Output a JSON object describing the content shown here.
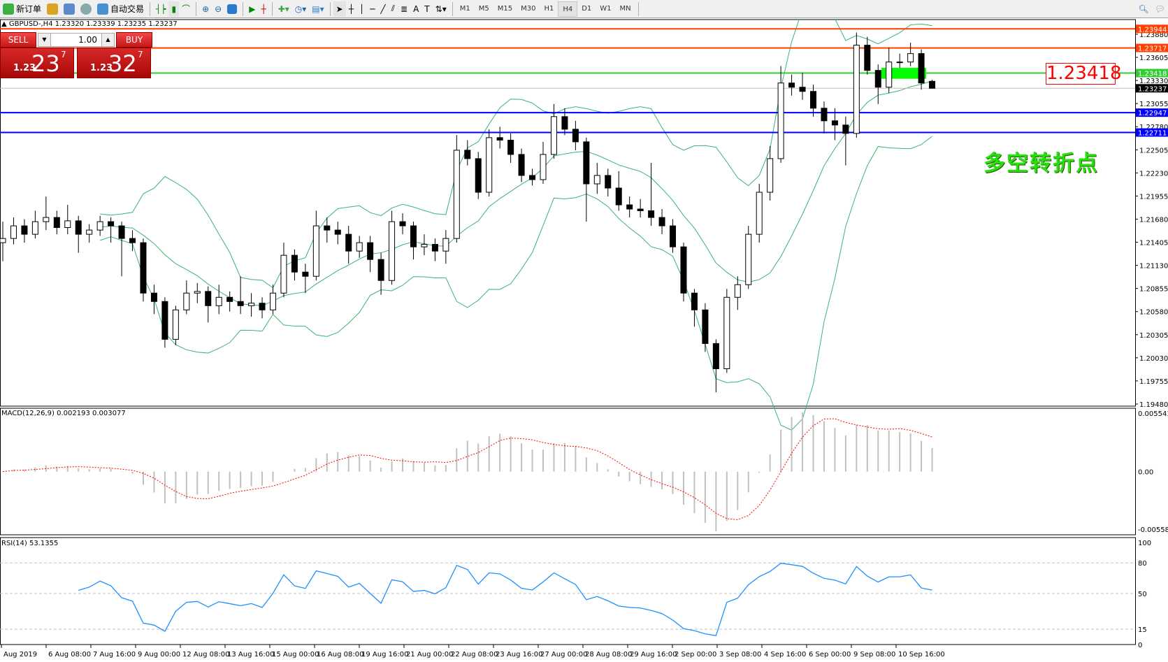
{
  "toolbar": {
    "new_order": "新订单",
    "auto_trading": "自动交易",
    "timeframes": [
      "M1",
      "M5",
      "M15",
      "M30",
      "H1",
      "H4",
      "D1",
      "W1",
      "MN"
    ],
    "active_timeframe": "H4"
  },
  "chart_header": "GBPUSD-,H4  1.23320 1.23339 1.23235 1.23237",
  "trade_panel": {
    "sell_label": "SELL",
    "buy_label": "BUY",
    "lot": "1.00",
    "sell_prefix": "1.23",
    "sell_big": "23",
    "sell_pip": "7",
    "buy_prefix": "1.23",
    "buy_big": "32",
    "buy_pip": "7"
  },
  "annotation_text": "多空转折点",
  "price_box": "1.23418",
  "macd_label": "MACD(12,26,9) 0.002193 0.003077",
  "rsi_label": "RSI(14) 53.1355",
  "colors": {
    "up_line": "#ff4000",
    "support": "#0000ff",
    "pivot": "#33cc33",
    "bands": "#3cb371",
    "rsi": "#1e90ff",
    "signal": "#ff0000",
    "histogram": "#c0c0c0"
  },
  "chart_data": {
    "type": "candlestick",
    "symbol": "GBPUSD-",
    "timeframe": "H4",
    "ylim": [
      1.1948,
      1.2399
    ],
    "price_ticks": [
      "1.23880",
      "1.23605",
      "1.23330",
      "1.23055",
      "1.22780",
      "1.22505",
      "1.22230",
      "1.21955",
      "1.21680",
      "1.21405",
      "1.21130",
      "1.20855",
      "1.20580",
      "1.20305",
      "1.20030",
      "1.19755",
      "1.19480"
    ],
    "date_ticks": [
      "Aug 2019",
      "6 Aug 08:00",
      "7 Aug 16:00",
      "9 Aug 00:00",
      "12 Aug 08:00",
      "13 Aug 16:00",
      "15 Aug 00:00",
      "16 Aug 08:00",
      "19 Aug 16:00",
      "21 Aug 00:00",
      "22 Aug 08:00",
      "23 Aug 16:00",
      "27 Aug 00:00",
      "28 Aug 08:00",
      "29 Aug 16:00",
      "2 Sep 00:00",
      "3 Sep 08:00",
      "4 Sep 16:00",
      "6 Sep 00:00",
      "9 Sep 08:00",
      "10 Sep 16:00"
    ],
    "ohlc": [
      [
        1.214,
        1.2165,
        1.2118,
        1.2145
      ],
      [
        1.2145,
        1.217,
        1.2138,
        1.216
      ],
      [
        1.216,
        1.2168,
        1.214,
        1.215
      ],
      [
        1.215,
        1.2178,
        1.2145,
        1.2165
      ],
      [
        1.2165,
        1.2195,
        1.2155,
        1.217
      ],
      [
        1.217,
        1.2178,
        1.215,
        1.2158
      ],
      [
        1.2158,
        1.2185,
        1.215,
        1.2166
      ],
      [
        1.2166,
        1.2172,
        1.2128,
        1.215
      ],
      [
        1.215,
        1.2162,
        1.214,
        1.2155
      ],
      [
        1.2155,
        1.2172,
        1.2148,
        1.2165
      ],
      [
        1.2165,
        1.217,
        1.214,
        1.216
      ],
      [
        1.216,
        1.2165,
        1.21,
        1.2145
      ],
      [
        1.2145,
        1.2155,
        1.213,
        1.214
      ],
      [
        1.214,
        1.2145,
        1.207,
        1.208
      ],
      [
        1.208,
        1.209,
        1.2055,
        1.207
      ],
      [
        1.207,
        1.2075,
        1.2015,
        1.2025
      ],
      [
        1.2025,
        1.2065,
        1.2018,
        1.206
      ],
      [
        1.206,
        1.2095,
        1.2055,
        1.208
      ],
      [
        1.208,
        1.2092,
        1.2068,
        1.2082
      ],
      [
        1.2082,
        1.2088,
        1.2045,
        1.2065
      ],
      [
        1.2065,
        1.209,
        1.2055,
        1.2075
      ],
      [
        1.2075,
        1.2082,
        1.2058,
        1.207
      ],
      [
        1.207,
        1.21,
        1.2055,
        1.2065
      ],
      [
        1.2065,
        1.208,
        1.2052,
        1.2068
      ],
      [
        1.2068,
        1.2075,
        1.205,
        1.206
      ],
      [
        1.206,
        1.209,
        1.2055,
        1.208
      ],
      [
        1.208,
        1.214,
        1.2075,
        1.2125
      ],
      [
        1.2125,
        1.2132,
        1.2095,
        1.2105
      ],
      [
        1.2105,
        1.2115,
        1.208,
        1.21
      ],
      [
        1.21,
        1.2178,
        1.2095,
        1.216
      ],
      [
        1.216,
        1.217,
        1.214,
        1.2155
      ],
      [
        1.2155,
        1.2165,
        1.2138,
        1.215
      ],
      [
        1.215,
        1.216,
        1.2115,
        1.213
      ],
      [
        1.213,
        1.2148,
        1.2122,
        1.214
      ],
      [
        1.214,
        1.2148,
        1.2105,
        1.212
      ],
      [
        1.212,
        1.2128,
        1.2078,
        1.2095
      ],
      [
        1.2095,
        1.2178,
        1.209,
        1.2165
      ],
      [
        1.2165,
        1.2175,
        1.215,
        1.216
      ],
      [
        1.216,
        1.2165,
        1.212,
        1.2135
      ],
      [
        1.2135,
        1.215,
        1.2125,
        1.2138
      ],
      [
        1.2138,
        1.2145,
        1.2118,
        1.213
      ],
      [
        1.213,
        1.2155,
        1.2115,
        1.2145
      ],
      [
        1.2145,
        1.2268,
        1.214,
        1.225
      ],
      [
        1.225,
        1.2262,
        1.2232,
        1.224
      ],
      [
        1.224,
        1.2248,
        1.2192,
        1.22
      ],
      [
        1.22,
        1.2275,
        1.2195,
        1.2265
      ],
      [
        1.2265,
        1.2278,
        1.2252,
        1.2262
      ],
      [
        1.2262,
        1.227,
        1.2235,
        1.2245
      ],
      [
        1.2245,
        1.2252,
        1.2212,
        1.222
      ],
      [
        1.222,
        1.2228,
        1.2208,
        1.2215
      ],
      [
        1.2215,
        1.226,
        1.221,
        1.2245
      ],
      [
        1.2245,
        1.2305,
        1.224,
        1.229
      ],
      [
        1.229,
        1.23,
        1.2268,
        1.2275
      ],
      [
        1.2275,
        1.2285,
        1.225,
        1.226
      ],
      [
        1.226,
        1.2265,
        1.2165,
        1.221
      ],
      [
        1.221,
        1.2235,
        1.2198,
        1.222
      ],
      [
        1.222,
        1.2228,
        1.2195,
        1.2205
      ],
      [
        1.2205,
        1.2225,
        1.2178,
        1.2185
      ],
      [
        1.2185,
        1.2195,
        1.217,
        1.218
      ],
      [
        1.218,
        1.2192,
        1.217,
        1.2178
      ],
      [
        1.2178,
        1.2235,
        1.216,
        1.217
      ],
      [
        1.217,
        1.218,
        1.215,
        1.216
      ],
      [
        1.216,
        1.2168,
        1.2128,
        1.2135
      ],
      [
        1.2135,
        1.214,
        1.207,
        1.208
      ],
      [
        1.208,
        1.2085,
        1.204,
        1.206
      ],
      [
        1.206,
        1.2068,
        1.201,
        1.202
      ],
      [
        1.202,
        1.2025,
        1.1962,
        1.199
      ],
      [
        1.199,
        1.2085,
        1.1985,
        1.2075
      ],
      [
        1.2075,
        1.21,
        1.206,
        1.209
      ],
      [
        1.209,
        1.216,
        1.2085,
        1.215
      ],
      [
        1.215,
        1.221,
        1.214,
        1.22
      ],
      [
        1.22,
        1.2255,
        1.219,
        1.224
      ],
      [
        1.224,
        1.235,
        1.2235,
        1.233
      ],
      [
        1.233,
        1.234,
        1.2315,
        1.2325
      ],
      [
        1.2325,
        1.2342,
        1.231,
        1.232
      ],
      [
        1.232,
        1.2328,
        1.229,
        1.23
      ],
      [
        1.23,
        1.2308,
        1.227,
        1.2285
      ],
      [
        1.2285,
        1.23,
        1.2262,
        1.228
      ],
      [
        1.228,
        1.229,
        1.2232,
        1.227
      ],
      [
        1.227,
        1.239,
        1.2265,
        1.2375
      ],
      [
        1.2375,
        1.2385,
        1.234,
        1.2345
      ],
      [
        1.2345,
        1.2352,
        1.2305,
        1.2325
      ],
      [
        1.2325,
        1.2372,
        1.2318,
        1.2355
      ],
      [
        1.2355,
        1.2365,
        1.2348,
        1.2355
      ],
      [
        1.2355,
        1.2378,
        1.235,
        1.2365
      ],
      [
        1.2365,
        1.237,
        1.2322,
        1.233
      ],
      [
        1.2332,
        1.23339,
        1.23235,
        1.23237
      ]
    ],
    "bollinger": {
      "period": 20,
      "deviation": 2
    },
    "hlines": [
      {
        "value": 1.23944,
        "label": "1.23944",
        "color": "#ff4000"
      },
      {
        "value": 1.23717,
        "label": "1.23717",
        "color": "#ff4000"
      },
      {
        "value": 1.23418,
        "label": "1.23418",
        "color": "#33cc33"
      },
      {
        "value": 1.22947,
        "label": "1.22947",
        "color": "#0000ff"
      },
      {
        "value": 1.22711,
        "label": "1.22711",
        "color": "#0000ff"
      }
    ],
    "current_price": {
      "value": 1.23237,
      "label": "1.23237"
    },
    "highlight_zone": {
      "from": 1.2335,
      "to": 1.2348
    },
    "macd": {
      "params": [
        12,
        26,
        9
      ],
      "ylim": [
        -0.005583,
        0.005543
      ],
      "ticks": [
        "0.005543",
        "0.00",
        "-0.005583"
      ]
    },
    "rsi": {
      "period": 14,
      "ylim": [
        0,
        100
      ],
      "levels": [
        80,
        50,
        15
      ],
      "ticks": [
        "100",
        "80",
        "50",
        "15",
        "0"
      ]
    }
  }
}
